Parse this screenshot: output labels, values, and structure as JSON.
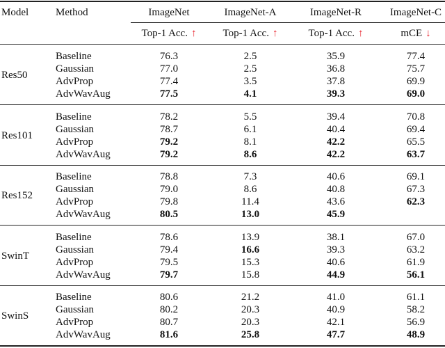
{
  "table": {
    "header": [
      "Model",
      "Method",
      "ImageNet",
      "ImageNet-A",
      "ImageNet-R",
      "ImageNet-C"
    ],
    "metrics": [
      {
        "label": "Top-1 Acc.",
        "arrow": "↑"
      },
      {
        "label": "Top-1 Acc.",
        "arrow": "↑"
      },
      {
        "label": "Top-1 Acc.",
        "arrow": "↑"
      },
      {
        "label": "mCE",
        "arrow": "↓"
      }
    ],
    "arrow_color": "#e8202a",
    "groups": [
      {
        "model": "Res50",
        "rows": [
          {
            "method": "Baseline",
            "values": [
              "76.3",
              "2.5",
              "35.9",
              "77.4"
            ],
            "bold": [
              false,
              false,
              false,
              false
            ]
          },
          {
            "method": "Gaussian",
            "values": [
              "77.0",
              "2.5",
              "36.8",
              "75.7"
            ],
            "bold": [
              false,
              false,
              false,
              false
            ]
          },
          {
            "method": "AdvProp",
            "values": [
              "77.4",
              "3.5",
              "37.8",
              "69.9"
            ],
            "bold": [
              false,
              false,
              false,
              false
            ]
          },
          {
            "method": "AdvWavAug",
            "values": [
              "77.5",
              "4.1",
              "39.3",
              "69.0"
            ],
            "bold": [
              true,
              true,
              true,
              true
            ]
          }
        ]
      },
      {
        "model": "Res101",
        "rows": [
          {
            "method": "Baseline",
            "values": [
              "78.2",
              "5.5",
              "39.4",
              "70.8"
            ],
            "bold": [
              false,
              false,
              false,
              false
            ]
          },
          {
            "method": "Gaussian",
            "values": [
              "78.7",
              "6.1",
              "40.4",
              "69.4"
            ],
            "bold": [
              false,
              false,
              false,
              false
            ]
          },
          {
            "method": "AdvProp",
            "values": [
              "79.2",
              "8.1",
              "42.2",
              "65.5"
            ],
            "bold": [
              true,
              false,
              true,
              false
            ]
          },
          {
            "method": "AdvWavAug",
            "values": [
              "79.2",
              "8.6",
              "42.2",
              "63.7"
            ],
            "bold": [
              true,
              true,
              true,
              true
            ]
          }
        ]
      },
      {
        "model": "Res152",
        "rows": [
          {
            "method": "Baseline",
            "values": [
              "78.8",
              "7.3",
              "40.6",
              "69.1"
            ],
            "bold": [
              false,
              false,
              false,
              false
            ]
          },
          {
            "method": "Gaussian",
            "values": [
              "79.0",
              "8.6",
              "40.8",
              "67.3"
            ],
            "bold": [
              false,
              false,
              false,
              false
            ]
          },
          {
            "method": "AdvProp",
            "values": [
              "79.8",
              "11.4",
              "43.6",
              "62.3"
            ],
            "bold": [
              false,
              false,
              false,
              true
            ]
          },
          {
            "method": "AdvWavAug",
            "values": [
              "80.5",
              "13.0",
              "45.9",
              null
            ],
            "bold": [
              true,
              true,
              true,
              false
            ]
          }
        ]
      },
      {
        "model": "SwinT",
        "rows": [
          {
            "method": "Baseline",
            "values": [
              "78.6",
              "13.9",
              "38.1",
              "67.0"
            ],
            "bold": [
              false,
              false,
              false,
              false
            ]
          },
          {
            "method": "Gaussian",
            "values": [
              "79.4",
              "16.6",
              "39.3",
              "63.2"
            ],
            "bold": [
              false,
              true,
              false,
              false
            ]
          },
          {
            "method": "AdvProp",
            "values": [
              "79.5",
              "15.3",
              "40.6",
              "61.9"
            ],
            "bold": [
              false,
              false,
              false,
              false
            ]
          },
          {
            "method": "AdvWavAug",
            "values": [
              "79.7",
              "15.8",
              "44.9",
              "56.1"
            ],
            "bold": [
              true,
              false,
              true,
              true
            ]
          }
        ]
      },
      {
        "model": "SwinS",
        "rows": [
          {
            "method": "Baseline",
            "values": [
              "80.6",
              "21.2",
              "41.0",
              "61.1"
            ],
            "bold": [
              false,
              false,
              false,
              false
            ]
          },
          {
            "method": "Gaussian",
            "values": [
              "80.2",
              "20.3",
              "40.9",
              "58.2"
            ],
            "bold": [
              false,
              false,
              false,
              false
            ]
          },
          {
            "method": "AdvProp",
            "values": [
              "80.7",
              "20.3",
              "42.1",
              "56.9"
            ],
            "bold": [
              false,
              false,
              false,
              false
            ]
          },
          {
            "method": "AdvWavAug",
            "values": [
              "81.6",
              "25.8",
              "47.7",
              "48.9"
            ],
            "bold": [
              true,
              true,
              true,
              true
            ]
          }
        ]
      }
    ]
  }
}
